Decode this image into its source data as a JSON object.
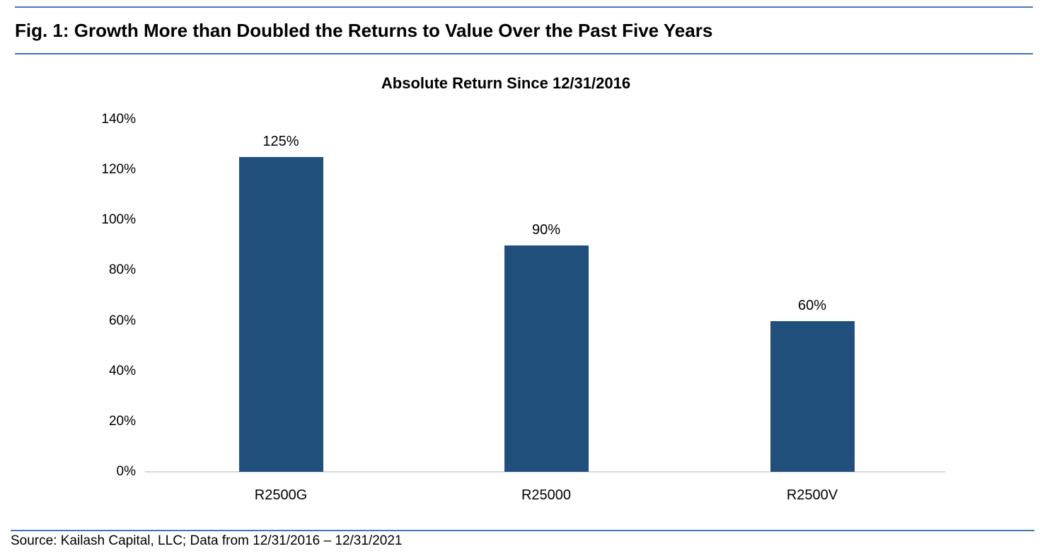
{
  "figure": {
    "title": "Fig. 1: Growth More than Doubled the Returns to Value Over the Past Five Years",
    "source": "Source: Kailash Capital, LLC; Data from 12/31/2016 – 12/31/2021"
  },
  "colors": {
    "bar": "#204f7c",
    "rule": "#4673b8",
    "axis": "#d9d9d9",
    "text": "#000000"
  },
  "chart_data": {
    "type": "bar",
    "title": "Absolute Return Since 12/31/2016",
    "categories": [
      "R2500G",
      "R25000",
      "R2500V"
    ],
    "values": [
      125,
      90,
      60
    ],
    "value_labels": [
      "125%",
      "90%",
      "60%"
    ],
    "xlabel": "",
    "ylabel": "",
    "ylim": [
      0,
      140
    ],
    "yticks": [
      0,
      20,
      40,
      60,
      80,
      100,
      120,
      140
    ],
    "ytick_labels": [
      "0%",
      "20%",
      "40%",
      "60%",
      "80%",
      "100%",
      "120%",
      "140%"
    ],
    "grid": false,
    "legend": false,
    "bar_color": "#204f7c"
  }
}
